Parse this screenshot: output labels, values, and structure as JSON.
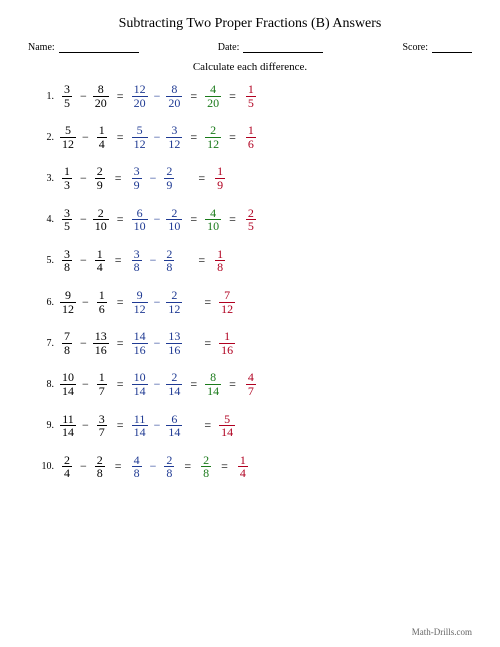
{
  "title": "Subtracting Two Proper Fractions (B) Answers",
  "header": {
    "name_label": "Name:",
    "date_label": "Date:",
    "score_label": "Score:",
    "name_line_width": 80,
    "date_line_width": 80,
    "score_line_width": 40
  },
  "instruction": "Calculate each difference.",
  "colors": {
    "problem": "#000000",
    "common": "#1f3a93",
    "diff": "#1a7a1a",
    "reduced": "#b00020"
  },
  "problems": [
    {
      "idx": "1.",
      "a": {
        "n": "3",
        "d": "5"
      },
      "b": {
        "n": "8",
        "d": "20"
      },
      "ac": {
        "n": "12",
        "d": "20"
      },
      "bc": {
        "n": "8",
        "d": "20"
      },
      "diff": {
        "n": "4",
        "d": "20"
      },
      "red": {
        "n": "1",
        "d": "5"
      },
      "has_red": true
    },
    {
      "idx": "2.",
      "a": {
        "n": "5",
        "d": "12"
      },
      "b": {
        "n": "1",
        "d": "4"
      },
      "ac": {
        "n": "5",
        "d": "12"
      },
      "bc": {
        "n": "3",
        "d": "12"
      },
      "diff": {
        "n": "2",
        "d": "12"
      },
      "red": {
        "n": "1",
        "d": "6"
      },
      "has_red": true
    },
    {
      "idx": "3.",
      "a": {
        "n": "1",
        "d": "3"
      },
      "b": {
        "n": "2",
        "d": "9"
      },
      "ac": {
        "n": "3",
        "d": "9"
      },
      "bc": {
        "n": "2",
        "d": "9"
      },
      "diff": null,
      "red": {
        "n": "1",
        "d": "9"
      },
      "has_red": true
    },
    {
      "idx": "4.",
      "a": {
        "n": "3",
        "d": "5"
      },
      "b": {
        "n": "2",
        "d": "10"
      },
      "ac": {
        "n": "6",
        "d": "10"
      },
      "bc": {
        "n": "2",
        "d": "10"
      },
      "diff": {
        "n": "4",
        "d": "10"
      },
      "red": {
        "n": "2",
        "d": "5"
      },
      "has_red": true
    },
    {
      "idx": "5.",
      "a": {
        "n": "3",
        "d": "8"
      },
      "b": {
        "n": "1",
        "d": "4"
      },
      "ac": {
        "n": "3",
        "d": "8"
      },
      "bc": {
        "n": "2",
        "d": "8"
      },
      "diff": null,
      "red": {
        "n": "1",
        "d": "8"
      },
      "has_red": true
    },
    {
      "idx": "6.",
      "a": {
        "n": "9",
        "d": "12"
      },
      "b": {
        "n": "1",
        "d": "6"
      },
      "ac": {
        "n": "9",
        "d": "12"
      },
      "bc": {
        "n": "2",
        "d": "12"
      },
      "diff": null,
      "red": {
        "n": "7",
        "d": "12"
      },
      "has_red": true
    },
    {
      "idx": "7.",
      "a": {
        "n": "7",
        "d": "8"
      },
      "b": {
        "n": "13",
        "d": "16"
      },
      "ac": {
        "n": "14",
        "d": "16"
      },
      "bc": {
        "n": "13",
        "d": "16"
      },
      "diff": null,
      "red": {
        "n": "1",
        "d": "16"
      },
      "has_red": true
    },
    {
      "idx": "8.",
      "a": {
        "n": "10",
        "d": "14"
      },
      "b": {
        "n": "1",
        "d": "7"
      },
      "ac": {
        "n": "10",
        "d": "14"
      },
      "bc": {
        "n": "2",
        "d": "14"
      },
      "diff": {
        "n": "8",
        "d": "14"
      },
      "red": {
        "n": "4",
        "d": "7"
      },
      "has_red": true
    },
    {
      "idx": "9.",
      "a": {
        "n": "11",
        "d": "14"
      },
      "b": {
        "n": "3",
        "d": "7"
      },
      "ac": {
        "n": "11",
        "d": "14"
      },
      "bc": {
        "n": "6",
        "d": "14"
      },
      "diff": null,
      "red": {
        "n": "5",
        "d": "14"
      },
      "has_red": true
    },
    {
      "idx": "10.",
      "a": {
        "n": "2",
        "d": "4"
      },
      "b": {
        "n": "2",
        "d": "8"
      },
      "ac": {
        "n": "4",
        "d": "8"
      },
      "bc": {
        "n": "2",
        "d": "8"
      },
      "diff": {
        "n": "2",
        "d": "8"
      },
      "red": {
        "n": "1",
        "d": "4"
      },
      "has_red": true
    }
  ],
  "minus": "−",
  "equals": "=",
  "footer": "Math-Drills.com"
}
